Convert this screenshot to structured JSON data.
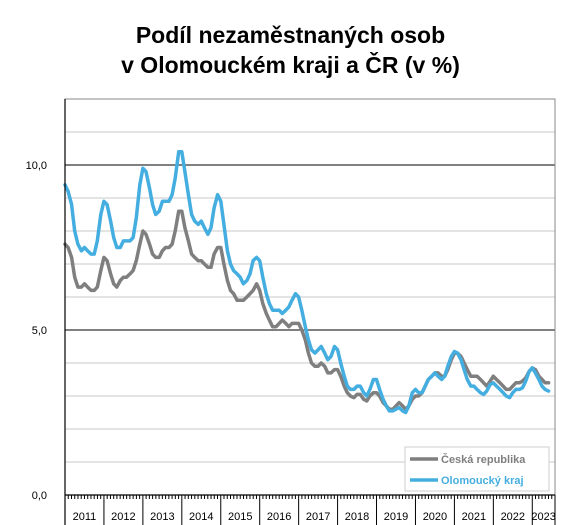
{
  "chart_data": {
    "type": "line",
    "title_lines": [
      "Podíl nezaměstnaných osob",
      "v Olomouckém kraji a ČR (v %)"
    ],
    "ylim": [
      0,
      12
    ],
    "yticks": [
      0,
      5,
      10
    ],
    "ytick_labels": [
      "0,0",
      "5,0",
      "10,0"
    ],
    "year_labels": [
      "2011",
      "2012",
      "2013",
      "2014",
      "2015",
      "2016",
      "2017",
      "2018",
      "2019",
      "2020",
      "2021",
      "2022",
      "2023"
    ],
    "grid": true,
    "legend_position": "bottom-right",
    "series": [
      {
        "name": "Česká republika",
        "color": "#7f7f7f",
        "points": [
          [
            2011.0,
            7.6
          ],
          [
            2011.08,
            7.5
          ],
          [
            2011.17,
            7.2
          ],
          [
            2011.25,
            6.6
          ],
          [
            2011.33,
            6.3
          ],
          [
            2011.42,
            6.3
          ],
          [
            2011.5,
            6.4
          ],
          [
            2011.58,
            6.3
          ],
          [
            2011.67,
            6.2
          ],
          [
            2011.75,
            6.2
          ],
          [
            2011.83,
            6.3
          ],
          [
            2011.92,
            6.8
          ],
          [
            2012.0,
            7.2
          ],
          [
            2012.08,
            7.1
          ],
          [
            2012.17,
            6.7
          ],
          [
            2012.25,
            6.4
          ],
          [
            2012.33,
            6.3
          ],
          [
            2012.42,
            6.5
          ],
          [
            2012.5,
            6.6
          ],
          [
            2012.58,
            6.6
          ],
          [
            2012.67,
            6.7
          ],
          [
            2012.75,
            6.8
          ],
          [
            2012.83,
            7.1
          ],
          [
            2012.92,
            7.6
          ],
          [
            2013.0,
            8.0
          ],
          [
            2013.08,
            7.9
          ],
          [
            2013.17,
            7.6
          ],
          [
            2013.25,
            7.3
          ],
          [
            2013.33,
            7.2
          ],
          [
            2013.42,
            7.2
          ],
          [
            2013.5,
            7.4
          ],
          [
            2013.58,
            7.5
          ],
          [
            2013.67,
            7.5
          ],
          [
            2013.75,
            7.6
          ],
          [
            2013.83,
            8.0
          ],
          [
            2013.92,
            8.6
          ],
          [
            2014.0,
            8.6
          ],
          [
            2014.08,
            8.1
          ],
          [
            2014.17,
            7.7
          ],
          [
            2014.25,
            7.3
          ],
          [
            2014.33,
            7.2
          ],
          [
            2014.42,
            7.1
          ],
          [
            2014.5,
            7.1
          ],
          [
            2014.58,
            7.0
          ],
          [
            2014.67,
            6.9
          ],
          [
            2014.75,
            6.9
          ],
          [
            2014.83,
            7.3
          ],
          [
            2014.92,
            7.5
          ],
          [
            2015.0,
            7.5
          ],
          [
            2015.08,
            7.0
          ],
          [
            2015.17,
            6.5
          ],
          [
            2015.25,
            6.2
          ],
          [
            2015.33,
            6.1
          ],
          [
            2015.42,
            5.9
          ],
          [
            2015.5,
            5.9
          ],
          [
            2015.58,
            5.9
          ],
          [
            2015.67,
            6.0
          ],
          [
            2015.75,
            6.1
          ],
          [
            2015.83,
            6.2
          ],
          [
            2015.92,
            6.4
          ],
          [
            2016.0,
            6.2
          ],
          [
            2016.08,
            5.8
          ],
          [
            2016.17,
            5.5
          ],
          [
            2016.25,
            5.3
          ],
          [
            2016.33,
            5.1
          ],
          [
            2016.42,
            5.1
          ],
          [
            2016.5,
            5.2
          ],
          [
            2016.58,
            5.3
          ],
          [
            2016.67,
            5.2
          ],
          [
            2016.75,
            5.1
          ],
          [
            2016.83,
            5.2
          ],
          [
            2016.92,
            5.2
          ],
          [
            2017.0,
            5.2
          ],
          [
            2017.08,
            5.0
          ],
          [
            2017.17,
            4.7
          ],
          [
            2017.25,
            4.3
          ],
          [
            2017.33,
            4.0
          ],
          [
            2017.42,
            3.9
          ],
          [
            2017.5,
            3.9
          ],
          [
            2017.58,
            4.0
          ],
          [
            2017.67,
            3.9
          ],
          [
            2017.75,
            3.7
          ],
          [
            2017.83,
            3.7
          ],
          [
            2017.92,
            3.8
          ],
          [
            2018.0,
            3.8
          ],
          [
            2018.08,
            3.6
          ],
          [
            2018.17,
            3.3
          ],
          [
            2018.25,
            3.1
          ],
          [
            2018.33,
            3.0
          ],
          [
            2018.42,
            2.95
          ],
          [
            2018.5,
            3.05
          ],
          [
            2018.58,
            3.05
          ],
          [
            2018.67,
            2.9
          ],
          [
            2018.75,
            2.85
          ],
          [
            2018.83,
            3.0
          ],
          [
            2018.92,
            3.1
          ],
          [
            2019.0,
            3.1
          ],
          [
            2019.08,
            3.0
          ],
          [
            2019.17,
            2.8
          ],
          [
            2019.25,
            2.7
          ],
          [
            2019.33,
            2.6
          ],
          [
            2019.42,
            2.6
          ],
          [
            2019.5,
            2.7
          ],
          [
            2019.58,
            2.8
          ],
          [
            2019.67,
            2.7
          ],
          [
            2019.75,
            2.6
          ],
          [
            2019.83,
            2.7
          ],
          [
            2019.92,
            2.9
          ],
          [
            2020.0,
            3.0
          ],
          [
            2020.08,
            3.0
          ],
          [
            2020.17,
            3.1
          ],
          [
            2020.25,
            3.3
          ],
          [
            2020.33,
            3.5
          ],
          [
            2020.42,
            3.6
          ],
          [
            2020.5,
            3.7
          ],
          [
            2020.58,
            3.7
          ],
          [
            2020.67,
            3.6
          ],
          [
            2020.75,
            3.6
          ],
          [
            2020.83,
            3.8
          ],
          [
            2020.92,
            4.1
          ],
          [
            2021.0,
            4.3
          ],
          [
            2021.08,
            4.3
          ],
          [
            2021.17,
            4.2
          ],
          [
            2021.25,
            4.0
          ],
          [
            2021.33,
            3.8
          ],
          [
            2021.42,
            3.6
          ],
          [
            2021.5,
            3.6
          ],
          [
            2021.58,
            3.6
          ],
          [
            2021.67,
            3.5
          ],
          [
            2021.75,
            3.4
          ],
          [
            2021.83,
            3.3
          ],
          [
            2021.92,
            3.45
          ],
          [
            2022.0,
            3.6
          ],
          [
            2022.08,
            3.5
          ],
          [
            2022.17,
            3.4
          ],
          [
            2022.25,
            3.3
          ],
          [
            2022.33,
            3.2
          ],
          [
            2022.42,
            3.2
          ],
          [
            2022.5,
            3.3
          ],
          [
            2022.58,
            3.4
          ],
          [
            2022.67,
            3.4
          ],
          [
            2022.75,
            3.45
          ],
          [
            2022.83,
            3.55
          ],
          [
            2022.92,
            3.75
          ],
          [
            2023.0,
            3.85
          ],
          [
            2023.08,
            3.8
          ],
          [
            2023.17,
            3.6
          ],
          [
            2023.25,
            3.5
          ],
          [
            2023.33,
            3.4
          ],
          [
            2023.42,
            3.4
          ]
        ]
      },
      {
        "name": "Olomoucký kraj",
        "color": "#45aee0",
        "points": [
          [
            2011.0,
            9.4
          ],
          [
            2011.08,
            9.2
          ],
          [
            2011.17,
            8.8
          ],
          [
            2011.25,
            8.0
          ],
          [
            2011.33,
            7.6
          ],
          [
            2011.42,
            7.4
          ],
          [
            2011.5,
            7.5
          ],
          [
            2011.58,
            7.4
          ],
          [
            2011.67,
            7.3
          ],
          [
            2011.75,
            7.3
          ],
          [
            2011.83,
            7.7
          ],
          [
            2011.92,
            8.5
          ],
          [
            2012.0,
            8.9
          ],
          [
            2012.08,
            8.8
          ],
          [
            2012.17,
            8.3
          ],
          [
            2012.25,
            7.8
          ],
          [
            2012.33,
            7.5
          ],
          [
            2012.42,
            7.5
          ],
          [
            2012.5,
            7.7
          ],
          [
            2012.58,
            7.7
          ],
          [
            2012.67,
            7.7
          ],
          [
            2012.75,
            7.8
          ],
          [
            2012.83,
            8.4
          ],
          [
            2012.92,
            9.4
          ],
          [
            2013.0,
            9.9
          ],
          [
            2013.08,
            9.8
          ],
          [
            2013.17,
            9.3
          ],
          [
            2013.25,
            8.8
          ],
          [
            2013.33,
            8.5
          ],
          [
            2013.42,
            8.6
          ],
          [
            2013.5,
            8.9
          ],
          [
            2013.58,
            8.9
          ],
          [
            2013.67,
            8.9
          ],
          [
            2013.75,
            9.1
          ],
          [
            2013.83,
            9.6
          ],
          [
            2013.92,
            10.4
          ],
          [
            2014.0,
            10.4
          ],
          [
            2014.08,
            9.8
          ],
          [
            2014.17,
            9.1
          ],
          [
            2014.25,
            8.5
          ],
          [
            2014.33,
            8.3
          ],
          [
            2014.42,
            8.2
          ],
          [
            2014.5,
            8.3
          ],
          [
            2014.58,
            8.1
          ],
          [
            2014.67,
            7.9
          ],
          [
            2014.75,
            8.1
          ],
          [
            2014.83,
            8.7
          ],
          [
            2014.92,
            9.1
          ],
          [
            2015.0,
            8.9
          ],
          [
            2015.08,
            8.2
          ],
          [
            2015.17,
            7.4
          ],
          [
            2015.25,
            7.0
          ],
          [
            2015.33,
            6.8
          ],
          [
            2015.42,
            6.7
          ],
          [
            2015.5,
            6.6
          ],
          [
            2015.58,
            6.4
          ],
          [
            2015.67,
            6.5
          ],
          [
            2015.75,
            6.7
          ],
          [
            2015.83,
            7.1
          ],
          [
            2015.92,
            7.2
          ],
          [
            2016.0,
            7.1
          ],
          [
            2016.08,
            6.6
          ],
          [
            2016.17,
            6.1
          ],
          [
            2016.25,
            5.8
          ],
          [
            2016.33,
            5.6
          ],
          [
            2016.42,
            5.6
          ],
          [
            2016.5,
            5.6
          ],
          [
            2016.58,
            5.5
          ],
          [
            2016.67,
            5.6
          ],
          [
            2016.75,
            5.7
          ],
          [
            2016.83,
            5.9
          ],
          [
            2016.92,
            6.1
          ],
          [
            2017.0,
            6.0
          ],
          [
            2017.08,
            5.6
          ],
          [
            2017.17,
            5.1
          ],
          [
            2017.25,
            4.7
          ],
          [
            2017.33,
            4.4
          ],
          [
            2017.42,
            4.3
          ],
          [
            2017.5,
            4.4
          ],
          [
            2017.58,
            4.5
          ],
          [
            2017.67,
            4.3
          ],
          [
            2017.75,
            4.1
          ],
          [
            2017.83,
            4.2
          ],
          [
            2017.92,
            4.5
          ],
          [
            2018.0,
            4.4
          ],
          [
            2018.08,
            4.0
          ],
          [
            2018.17,
            3.6
          ],
          [
            2018.25,
            3.3
          ],
          [
            2018.33,
            3.2
          ],
          [
            2018.42,
            3.2
          ],
          [
            2018.5,
            3.3
          ],
          [
            2018.58,
            3.3
          ],
          [
            2018.67,
            3.1
          ],
          [
            2018.75,
            3.0
          ],
          [
            2018.83,
            3.2
          ],
          [
            2018.92,
            3.5
          ],
          [
            2019.0,
            3.5
          ],
          [
            2019.08,
            3.2
          ],
          [
            2019.17,
            2.9
          ],
          [
            2019.25,
            2.7
          ],
          [
            2019.33,
            2.55
          ],
          [
            2019.42,
            2.55
          ],
          [
            2019.5,
            2.6
          ],
          [
            2019.58,
            2.65
          ],
          [
            2019.67,
            2.55
          ],
          [
            2019.75,
            2.5
          ],
          [
            2019.83,
            2.7
          ],
          [
            2019.92,
            3.1
          ],
          [
            2020.0,
            3.2
          ],
          [
            2020.08,
            3.1
          ],
          [
            2020.17,
            3.1
          ],
          [
            2020.25,
            3.3
          ],
          [
            2020.33,
            3.5
          ],
          [
            2020.42,
            3.6
          ],
          [
            2020.5,
            3.7
          ],
          [
            2020.58,
            3.6
          ],
          [
            2020.67,
            3.5
          ],
          [
            2020.75,
            3.6
          ],
          [
            2020.83,
            3.9
          ],
          [
            2020.92,
            4.2
          ],
          [
            2021.0,
            4.35
          ],
          [
            2021.08,
            4.3
          ],
          [
            2021.17,
            4.1
          ],
          [
            2021.25,
            3.8
          ],
          [
            2021.33,
            3.5
          ],
          [
            2021.42,
            3.3
          ],
          [
            2021.5,
            3.3
          ],
          [
            2021.58,
            3.2
          ],
          [
            2021.67,
            3.1
          ],
          [
            2021.75,
            3.05
          ],
          [
            2021.83,
            3.15
          ],
          [
            2021.92,
            3.35
          ],
          [
            2022.0,
            3.4
          ],
          [
            2022.08,
            3.3
          ],
          [
            2022.17,
            3.2
          ],
          [
            2022.25,
            3.1
          ],
          [
            2022.33,
            3.0
          ],
          [
            2022.42,
            2.95
          ],
          [
            2022.5,
            3.1
          ],
          [
            2022.58,
            3.2
          ],
          [
            2022.67,
            3.2
          ],
          [
            2022.75,
            3.25
          ],
          [
            2022.83,
            3.45
          ],
          [
            2022.92,
            3.75
          ],
          [
            2023.0,
            3.85
          ],
          [
            2023.08,
            3.7
          ],
          [
            2023.17,
            3.5
          ],
          [
            2023.25,
            3.3
          ],
          [
            2023.33,
            3.2
          ],
          [
            2023.42,
            3.15
          ]
        ]
      }
    ]
  }
}
